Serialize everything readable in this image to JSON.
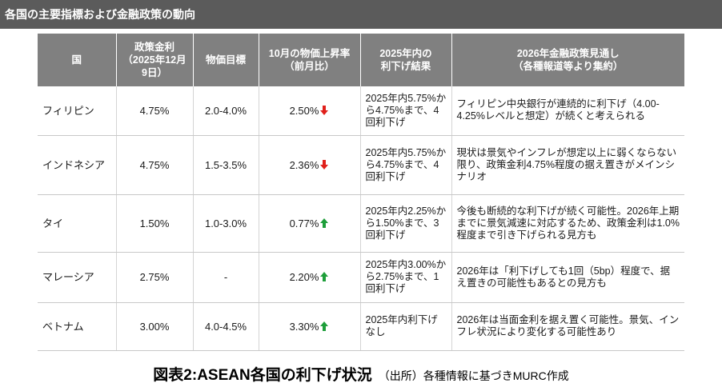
{
  "title": "各国の主要指標および金融政策の動向",
  "table": {
    "headers": [
      "国",
      "政策金利\n（2025年12月\n9日）",
      "物価目標",
      "10月の物価上昇率\n（前月比）",
      "2025年内の\n利下げ結果",
      "2026年金融政策見通し\n（各種報道等より集約）"
    ],
    "rows": [
      {
        "country": "フィリピン",
        "policy_rate": "4.75%",
        "target": "2.0-4.0%",
        "inflation": "2.50%",
        "direction": "down",
        "result": "2025年内5.75%から4.75%まで、4回利下げ",
        "outlook": "フィリピン中央銀行が連続的に利下げ（4.00-4.25%レベルと想定）が続くと考えられる"
      },
      {
        "country": "インドネシア",
        "policy_rate": "4.75%",
        "target": "1.5-3.5%",
        "inflation": "2.36%",
        "direction": "down",
        "result": "2025年内5.75%から4.75%まで、4回利下げ",
        "outlook": "現状は景気やインフレが想定以上に弱くならない限り、政策金利4.75%程度の据え置きがメインシナリオ"
      },
      {
        "country": "タイ",
        "policy_rate": "1.50%",
        "target": "1.0-3.0%",
        "inflation": "0.77%",
        "direction": "up",
        "result": "2025年内2.25%から1.50%まで、3回利下げ",
        "outlook": "今後も断続的な利下げが続く可能性。2026年上期までに景気減速に対応するため、政策金利は1.0%程度まで引き下げられる見方も"
      },
      {
        "country": "マレーシア",
        "policy_rate": "2.75%",
        "target": "-",
        "inflation": "2.20%",
        "direction": "up",
        "result": "2025年内3.00%から2.75%まで、1回利下げ",
        "outlook": "2026年は「利下げしても1回（5bp）程度で、据え置きの可能性もあるとの見方も"
      },
      {
        "country": "ベトナム",
        "policy_rate": "3.00%",
        "target": "4.0-4.5%",
        "inflation": "3.30%",
        "direction": "up",
        "result": "2025年内利下げなし",
        "outlook": "2026年は当面金利を据え置く可能性。景気、インフレ状況により変化する可能性あり"
      }
    ]
  },
  "caption": {
    "main": "図表2:ASEAN各国の利下げ状況",
    "source": "（出所）各種情報に基づきMURC作成"
  },
  "colors": {
    "title_bar": "#5b5b5b",
    "header_bg": "#808080",
    "arrow_down": "#e0201b",
    "arrow_up": "#1e9e3a"
  }
}
